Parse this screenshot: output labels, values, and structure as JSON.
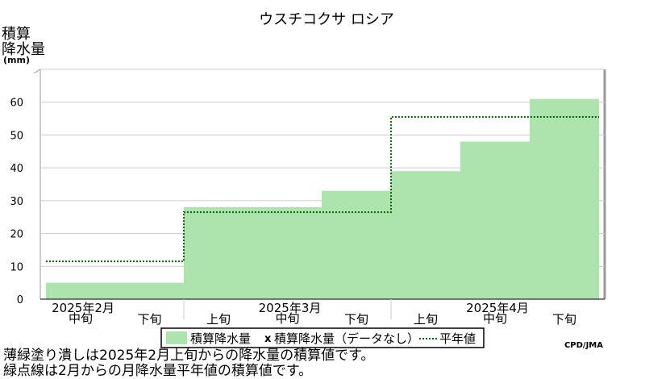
{
  "chart_data": {
    "type": "area",
    "title": "ウスチコクサ ロシア",
    "ylabel_lines": [
      "積算",
      "降水量",
      "(mm)"
    ],
    "ylim": [
      0,
      70
    ],
    "yticks": [
      0,
      10,
      20,
      30,
      40,
      50,
      60
    ],
    "x": [
      "2月中旬",
      "2月下旬",
      "3月上旬",
      "3月中旬",
      "3月下旬",
      "4月上旬",
      "4月中旬",
      "4月下旬"
    ],
    "period_labels": [
      "中旬",
      "下旬",
      "上旬",
      "中旬",
      "下旬",
      "上旬",
      "中旬",
      "下旬"
    ],
    "month_labels": [
      {
        "label": "2025年2月",
        "slot": 0
      },
      {
        "label": "2025年3月",
        "slot": 3
      },
      {
        "label": "2025年4月",
        "slot": 6
      }
    ],
    "series": [
      {
        "name": "積算降水量",
        "values": [
          5,
          5,
          28,
          28,
          33,
          39,
          48,
          61
        ],
        "color": "#ade3ad"
      },
      {
        "name": "平年値",
        "values": [
          11.5,
          11.5,
          26.5,
          26.5,
          26.5,
          55.5,
          55.5,
          55.5
        ],
        "color": "#006600",
        "style": "dotted"
      }
    ],
    "legend": {
      "fill_label": "積算降水量",
      "missing_marker": "x",
      "missing_label": "積算降水量（データなし）",
      "normal_label": "平年値"
    },
    "credit": "CPD/JMA"
  },
  "notes": [
    "薄緑塗り潰しは2025年2月上旬からの降水量の積算値です。",
    "緑点線は2月からの月降水量平年値の積算値です。"
  ]
}
